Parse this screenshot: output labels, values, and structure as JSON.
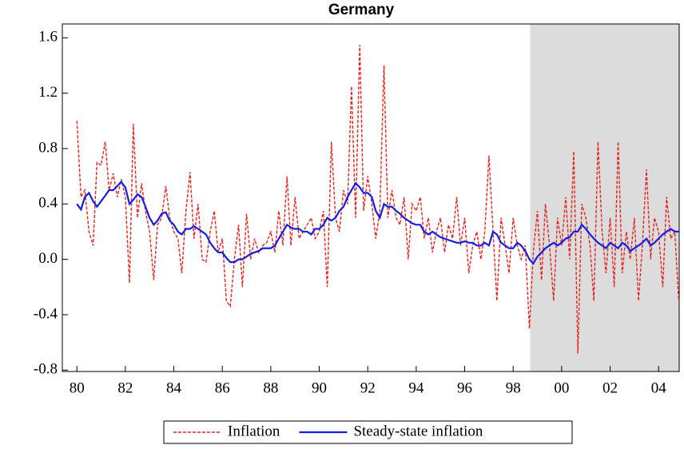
{
  "chart_data": {
    "type": "line",
    "title": "Germany",
    "x": [
      1980,
      1980.17,
      1980.33,
      1980.5,
      1980.67,
      1980.83,
      1981,
      1981.17,
      1981.33,
      1981.5,
      1981.67,
      1981.83,
      1982,
      1982.17,
      1982.33,
      1982.5,
      1982.67,
      1982.83,
      1983,
      1983.17,
      1983.33,
      1983.5,
      1983.67,
      1983.83,
      1984,
      1984.17,
      1984.33,
      1984.5,
      1984.67,
      1984.83,
      1985,
      1985.17,
      1985.33,
      1985.5,
      1985.67,
      1985.83,
      1986,
      1986.17,
      1986.33,
      1986.5,
      1986.67,
      1986.83,
      1987,
      1987.17,
      1987.33,
      1987.5,
      1987.67,
      1987.83,
      1988,
      1988.17,
      1988.33,
      1988.5,
      1988.67,
      1988.83,
      1989,
      1989.17,
      1989.33,
      1989.5,
      1989.67,
      1989.83,
      1990,
      1990.17,
      1990.33,
      1990.5,
      1990.67,
      1990.83,
      1991,
      1991.17,
      1991.33,
      1991.5,
      1991.67,
      1991.83,
      1992,
      1992.17,
      1992.33,
      1992.5,
      1992.67,
      1992.83,
      1993,
      1993.17,
      1993.33,
      1993.5,
      1993.67,
      1993.83,
      1994,
      1994.17,
      1994.33,
      1994.5,
      1994.67,
      1994.83,
      1995,
      1995.17,
      1995.33,
      1995.5,
      1995.67,
      1995.83,
      1996,
      1996.17,
      1996.33,
      1996.5,
      1996.67,
      1996.83,
      1997,
      1997.17,
      1997.33,
      1997.5,
      1997.67,
      1997.83,
      1998,
      1998.17,
      1998.33,
      1998.5,
      1998.67,
      1998.83,
      1999,
      1999.17,
      1999.33,
      1999.5,
      1999.67,
      1999.83,
      2000,
      2000.17,
      2000.33,
      2000.5,
      2000.67,
      2000.83,
      2001,
      2001.17,
      2001.33,
      2001.5,
      2001.67,
      2001.83,
      2002,
      2002.17,
      2002.33,
      2002.5,
      2002.67,
      2002.83,
      2003,
      2003.17,
      2003.33,
      2003.5,
      2003.67,
      2003.83,
      2004,
      2004.17,
      2004.33,
      2004.5,
      2004.67,
      2004.83
    ],
    "series": [
      {
        "name": "Inflation",
        "color": "#e8231f",
        "line_style": "dashed",
        "values": [
          1.0,
          0.45,
          0.5,
          0.2,
          0.1,
          0.7,
          0.68,
          0.85,
          0.5,
          0.62,
          0.45,
          0.58,
          0.45,
          -0.17,
          0.98,
          0.3,
          0.55,
          0.35,
          0.2,
          -0.15,
          0.25,
          0.3,
          0.53,
          0.3,
          0.2,
          0.15,
          -0.1,
          0.35,
          0.63,
          0.15,
          0.4,
          0.0,
          -0.02,
          0.2,
          0.35,
          0.05,
          0.15,
          -0.3,
          -0.34,
          0.0,
          0.25,
          -0.2,
          0.33,
          0.0,
          0.15,
          0.05,
          0.1,
          0.12,
          0.2,
          0.05,
          0.35,
          0.1,
          0.6,
          0.1,
          0.45,
          0.15,
          0.2,
          0.25,
          0.3,
          0.15,
          0.2,
          0.35,
          -0.2,
          0.85,
          0.3,
          0.2,
          0.5,
          0.4,
          1.25,
          0.3,
          1.55,
          0.35,
          0.6,
          0.4,
          0.15,
          0.35,
          1.4,
          0.3,
          0.5,
          0.3,
          0.25,
          0.45,
          0.0,
          0.4,
          0.35,
          0.45,
          0.15,
          0.3,
          0.05,
          0.2,
          0.3,
          0.05,
          0.25,
          0.15,
          0.45,
          0.1,
          0.3,
          -0.1,
          0.1,
          0.2,
          0.0,
          0.2,
          0.75,
          0.2,
          -0.3,
          0.3,
          0.1,
          -0.1,
          0.3,
          0.1,
          0.0,
          0.1,
          -0.5,
          0.05,
          0.35,
          -0.15,
          0.4,
          0.1,
          -0.3,
          0.3,
          0.1,
          0.45,
          0.0,
          0.78,
          -0.68,
          0.4,
          0.3,
          0.1,
          -0.3,
          0.85,
          0.2,
          -0.1,
          0.3,
          -0.2,
          0.85,
          -0.1,
          0.2,
          0.0,
          0.3,
          -0.3,
          0.1,
          0.65,
          0.0,
          0.3,
          0.2,
          -0.2,
          0.45,
          0.15,
          0.2,
          -0.3
        ]
      },
      {
        "name": "Steady-state inflation",
        "color": "#1420e0",
        "line_style": "solid",
        "values": [
          0.4,
          0.36,
          0.45,
          0.48,
          0.42,
          0.38,
          0.42,
          0.46,
          0.5,
          0.5,
          0.53,
          0.56,
          0.52,
          0.4,
          0.43,
          0.47,
          0.45,
          0.38,
          0.3,
          0.25,
          0.28,
          0.33,
          0.34,
          0.28,
          0.25,
          0.2,
          0.18,
          0.22,
          0.22,
          0.24,
          0.22,
          0.2,
          0.18,
          0.12,
          0.08,
          0.05,
          0.05,
          0.01,
          -0.02,
          -0.02,
          0.0,
          0.0,
          0.02,
          0.04,
          0.05,
          0.06,
          0.08,
          0.08,
          0.08,
          0.1,
          0.15,
          0.2,
          0.25,
          0.23,
          0.22,
          0.22,
          0.2,
          0.2,
          0.18,
          0.22,
          0.22,
          0.25,
          0.3,
          0.28,
          0.3,
          0.35,
          0.38,
          0.45,
          0.5,
          0.55,
          0.52,
          0.48,
          0.48,
          0.45,
          0.35,
          0.3,
          0.4,
          0.38,
          0.38,
          0.35,
          0.33,
          0.3,
          0.28,
          0.26,
          0.25,
          0.25,
          0.2,
          0.18,
          0.2,
          0.18,
          0.16,
          0.15,
          0.14,
          0.13,
          0.12,
          0.12,
          0.13,
          0.12,
          0.12,
          0.1,
          0.1,
          0.12,
          0.1,
          0.2,
          0.18,
          0.12,
          0.1,
          0.08,
          0.08,
          0.12,
          0.1,
          0.06,
          0.0,
          -0.03,
          0.02,
          0.05,
          0.08,
          0.1,
          0.12,
          0.1,
          0.12,
          0.15,
          0.16,
          0.2,
          0.2,
          0.25,
          0.22,
          0.18,
          0.15,
          0.12,
          0.1,
          0.08,
          0.12,
          0.1,
          0.08,
          0.12,
          0.1,
          0.06,
          0.08,
          0.1,
          0.12,
          0.15,
          0.1,
          0.12,
          0.15,
          0.18,
          0.2,
          0.22,
          0.2,
          0.2
        ]
      }
    ],
    "xlim": [
      1979.4,
      2004.85
    ],
    "xticks": [
      {
        "value": 1980,
        "label": "80"
      },
      {
        "value": 1982,
        "label": "82"
      },
      {
        "value": 1984,
        "label": "84"
      },
      {
        "value": 1986,
        "label": "86"
      },
      {
        "value": 1988,
        "label": "88"
      },
      {
        "value": 1990,
        "label": "90"
      },
      {
        "value": 1992,
        "label": "92"
      },
      {
        "value": 1994,
        "label": "94"
      },
      {
        "value": 1996,
        "label": "96"
      },
      {
        "value": 1998,
        "label": "98"
      },
      {
        "value": 2000,
        "label": "00"
      },
      {
        "value": 2002,
        "label": "02"
      },
      {
        "value": 2004,
        "label": "04"
      }
    ],
    "ylim": [
      -0.81,
      1.7
    ],
    "yticks": [
      -0.8,
      -0.4,
      {
        "value": 0,
        "label": "0.0"
      },
      0.4,
      0.8,
      1.2,
      1.6
    ],
    "shaded_region": {
      "xlim": [
        1998.7,
        2004.85
      ],
      "color": "#dcdcdc"
    },
    "grid": false,
    "legend": "bottom"
  }
}
